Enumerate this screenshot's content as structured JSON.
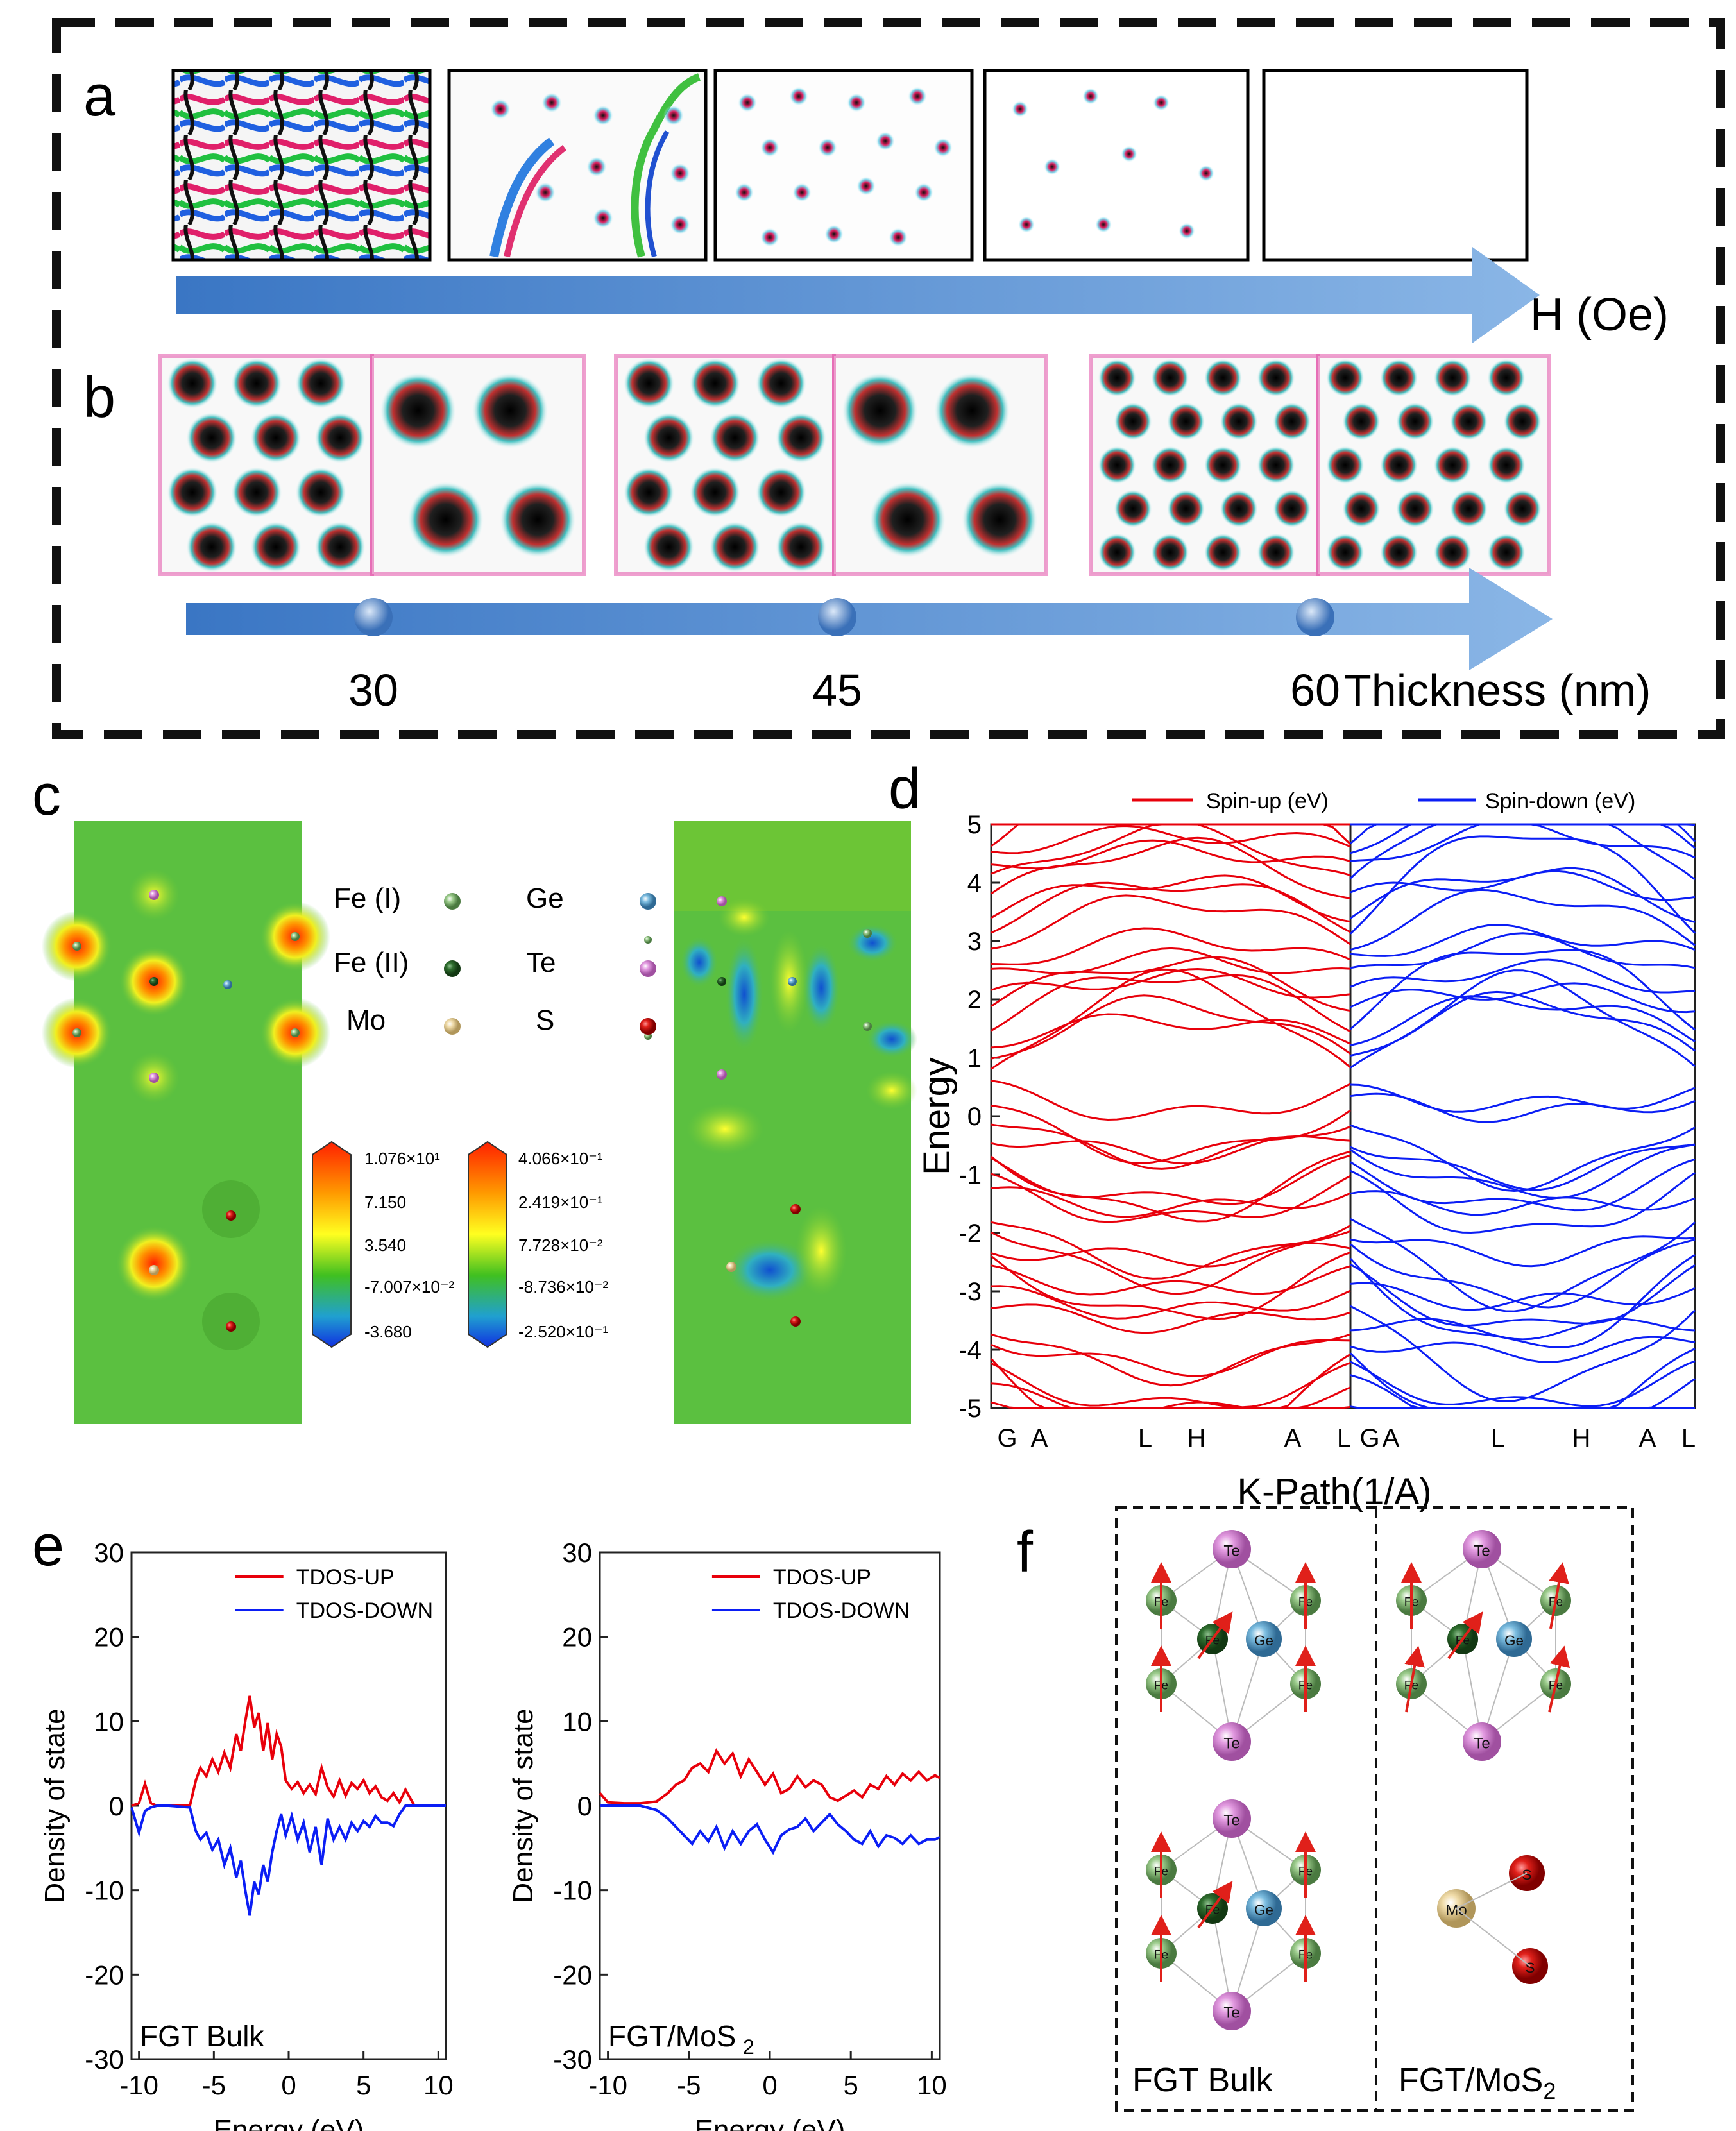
{
  "panels": {
    "a": "a",
    "b": "b",
    "c": "c",
    "d": "d",
    "e": "e",
    "f": "f"
  },
  "panel_a": {
    "axis_label": "H (Oe)"
  },
  "panel_b": {
    "ticks": [
      "30",
      "45",
      "60"
    ],
    "axis_label": "Thickness (nm)"
  },
  "panel_c": {
    "legend": [
      {
        "label": "Fe (I)",
        "color": "#8cc27a"
      },
      {
        "label": "Ge",
        "color": "#6ab3d9"
      },
      {
        "label": "Fe (II)",
        "color": "#2f6f2f"
      },
      {
        "label": "Te",
        "color": "#d889d6"
      },
      {
        "label": "Mo",
        "color": "#ecd7a3"
      },
      {
        "label": "S",
        "color": "#e0201a"
      }
    ],
    "scale1": [
      "1.076×10¹",
      "7.150",
      "3.540",
      "-7.007×10⁻²",
      "-3.680"
    ],
    "scale2": [
      "4.066×10⁻¹",
      "2.419×10⁻¹",
      "7.728×10⁻²",
      "-8.736×10⁻²",
      "-2.520×10⁻¹"
    ]
  },
  "chart_data": [
    {
      "id": "d",
      "type": "line",
      "legend": [
        "Spin-up (eV)",
        "Spin-down (eV)"
      ],
      "ylabel": "Energy",
      "xlabel": "K-Path(1/A)",
      "ylim": [
        -5,
        5
      ],
      "yticks": [
        "5",
        "4",
        "3",
        "2",
        "1",
        "0",
        "-1",
        "-2",
        "-3",
        "-4",
        "-5"
      ],
      "kpath_up": [
        "G",
        "A",
        "L",
        "H",
        "A",
        "L"
      ],
      "kpath_down": [
        "G",
        "A",
        "L",
        "H",
        "A",
        "L"
      ]
    },
    {
      "id": "e1",
      "type": "line",
      "title": "FGT Bulk",
      "xlabel": "Energy (eV)",
      "ylabel": "Density of state",
      "xlim": [
        -10.5,
        10.5
      ],
      "ylim": [
        -30,
        30
      ],
      "xticks": [
        "-10",
        "-5",
        "0",
        "5",
        "10"
      ],
      "yticks": [
        "30",
        "20",
        "10",
        "0",
        "-10",
        "-20",
        "-30"
      ],
      "series": [
        {
          "name": "TDOS-UP",
          "color": "#e8000b",
          "x": [
            -10.5,
            -10,
            -9.6,
            -9.2,
            -8.8,
            -8,
            -6.6,
            -6.2,
            -5.9,
            -5.5,
            -5.1,
            -4.7,
            -4.3,
            -3.9,
            -3.5,
            -3.2,
            -2.9,
            -2.6,
            -2.3,
            -2,
            -1.7,
            -1.4,
            -1.1,
            -0.8,
            -0.5,
            -0.2,
            0.2,
            0.6,
            1,
            1.4,
            1.8,
            2.2,
            2.6,
            3,
            3.4,
            3.8,
            4.2,
            4.6,
            5,
            5.4,
            5.8,
            6.2,
            6.6,
            7,
            7.4,
            7.8,
            8.4,
            9,
            10.5
          ],
          "values": [
            0,
            0.3,
            2.6,
            0.3,
            0,
            0,
            0,
            3,
            4.5,
            3.5,
            5.5,
            4,
            6.3,
            4.5,
            8.5,
            6.5,
            10,
            13,
            9.3,
            11,
            6.5,
            9.8,
            5.5,
            8.5,
            7,
            3,
            2,
            2.8,
            1.5,
            2.5,
            1.4,
            4.5,
            2.2,
            1.1,
            3,
            1.2,
            2.7,
            2,
            3,
            1.5,
            2.3,
            1,
            0.6,
            1.5,
            0.4,
            1.9,
            0,
            0,
            0
          ]
        },
        {
          "name": "TDOS-DOWN",
          "color": "#0b1ef5",
          "x": [
            -10.5,
            -10,
            -9.6,
            -9.2,
            -8.8,
            -8,
            -6.6,
            -6.2,
            -5.9,
            -5.5,
            -5.1,
            -4.7,
            -4.3,
            -3.9,
            -3.5,
            -3.2,
            -2.9,
            -2.6,
            -2.3,
            -2,
            -1.7,
            -1.4,
            -1.1,
            -0.8,
            -0.5,
            -0.2,
            0.2,
            0.6,
            1,
            1.4,
            1.8,
            2.2,
            2.6,
            3,
            3.4,
            3.8,
            4.2,
            4.6,
            5,
            5.4,
            5.8,
            6.2,
            6.6,
            7,
            7.4,
            7.8,
            8.4,
            9,
            10.5
          ],
          "values": [
            -0.2,
            -3.2,
            -0.6,
            -0.2,
            0,
            0,
            -0.2,
            -3,
            -4,
            -3.2,
            -5.2,
            -4,
            -7,
            -5,
            -8.5,
            -6.5,
            -10,
            -13,
            -9,
            -10.5,
            -7,
            -9,
            -5.5,
            -3,
            -1,
            -3.5,
            -1.2,
            -4,
            -2,
            -5.5,
            -2.5,
            -7,
            -1.5,
            -4,
            -2.5,
            -4,
            -2,
            -3,
            -1.8,
            -2.5,
            -1.2,
            -2,
            -2,
            -2.4,
            -1,
            0,
            0,
            0,
            0
          ]
        }
      ]
    },
    {
      "id": "e2",
      "type": "line",
      "title": "FGT/MoS",
      "title_sub": "2",
      "xlabel": "Energy (eV)",
      "ylabel": "Density of state",
      "xlim": [
        -10.5,
        10.5
      ],
      "ylim": [
        -30,
        30
      ],
      "xticks": [
        "-10",
        "-5",
        "0",
        "5",
        "10"
      ],
      "yticks": [
        "30",
        "20",
        "10",
        "0",
        "-10",
        "-20",
        "-30"
      ],
      "series": [
        {
          "name": "TDOS-UP",
          "color": "#e8000b",
          "x": [
            -10.5,
            -10,
            -9,
            -8,
            -7,
            -6.3,
            -5.8,
            -5.3,
            -4.8,
            -4.3,
            -3.8,
            -3.3,
            -2.8,
            -2.3,
            -1.8,
            -1.3,
            -0.8,
            -0.3,
            0.2,
            0.7,
            1.2,
            1.7,
            2.2,
            2.7,
            3.2,
            3.7,
            4.2,
            4.7,
            5.2,
            5.7,
            6.2,
            6.7,
            7.2,
            7.7,
            8.2,
            8.7,
            9.2,
            9.7,
            10.2,
            10.5
          ],
          "values": [
            1.5,
            0.4,
            0.3,
            0.3,
            0.5,
            1.5,
            2.5,
            3,
            4.5,
            5,
            4,
            6.5,
            5,
            6.2,
            3.5,
            5.5,
            4,
            2.5,
            3.8,
            1.5,
            2,
            3.5,
            2.2,
            3,
            2.5,
            1,
            0.6,
            1.2,
            1.8,
            1,
            2.5,
            2,
            3.5,
            2.5,
            3.8,
            3,
            4,
            3,
            3.6,
            3.3
          ]
        },
        {
          "name": "TDOS-DOWN",
          "color": "#0b1ef5",
          "x": [
            -10.5,
            -10,
            -9,
            -8,
            -7,
            -6.3,
            -5.8,
            -5.3,
            -4.8,
            -4.3,
            -3.8,
            -3.3,
            -2.8,
            -2.3,
            -1.8,
            -1.3,
            -0.8,
            -0.3,
            0.2,
            0.7,
            1.2,
            1.7,
            2.2,
            2.7,
            3.2,
            3.7,
            4.2,
            4.7,
            5.2,
            5.7,
            6.2,
            6.7,
            7.2,
            7.7,
            8.2,
            8.7,
            9.2,
            9.7,
            10.2,
            10.5
          ],
          "values": [
            0,
            0,
            0,
            0,
            -0.5,
            -1.5,
            -2.5,
            -3.5,
            -4.5,
            -3,
            -4.2,
            -2.5,
            -5,
            -3,
            -4.5,
            -3,
            -2.2,
            -4,
            -5.5,
            -3.5,
            -2.8,
            -2.5,
            -1.5,
            -3,
            -2,
            -1,
            -2.2,
            -3,
            -4,
            -4.5,
            -3,
            -4.8,
            -3.5,
            -3.8,
            -4.5,
            -3.5,
            -4.5,
            -4,
            -4,
            -3.7
          ]
        }
      ]
    }
  ],
  "panel_f": {
    "labels_left": "FGT Bulk",
    "labels_right": "FGT/MoS",
    "labels_right_sub": "2",
    "atoms": {
      "Te": "Te",
      "Fe": "Fe",
      "Ge": "Ge",
      "Mo": "Mo",
      "S": "S"
    }
  }
}
